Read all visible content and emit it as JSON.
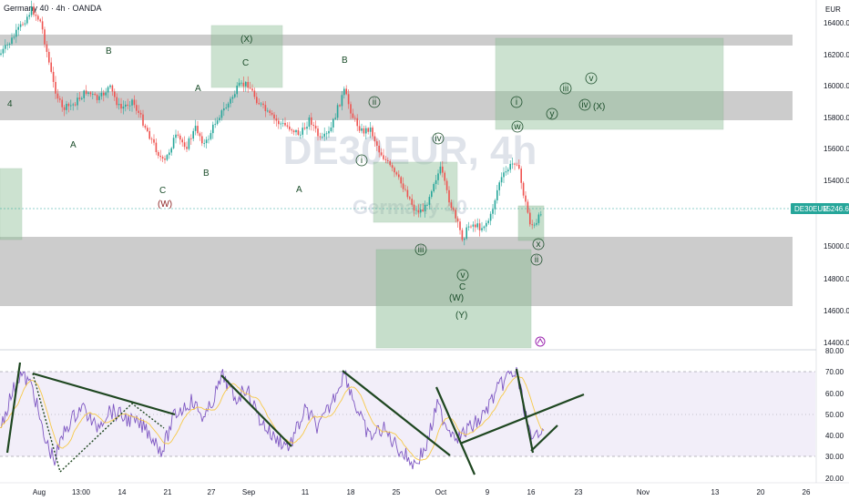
{
  "header": {
    "symbol": "Germany 40",
    "interval": "4h",
    "broker": "OANDA",
    "currency": "EUR"
  },
  "watermark": {
    "ticker": "DE30EUR, 4h",
    "name": "Germany 40"
  },
  "price_tag": {
    "symbol": "DE30EUR",
    "value": "15246.6"
  },
  "price_axis": [
    "16400.0",
    "16200.0",
    "16000.0",
    "15800.0",
    "15600.0",
    "15400.0",
    "15200.0",
    "15000.0",
    "14800.0",
    "14600.0",
    "14400.0"
  ],
  "rsi_axis": [
    "80.00",
    "70.00",
    "60.00",
    "50.00",
    "40.00",
    "30.00",
    "20.00"
  ],
  "time_axis": [
    "Aug",
    "13:00",
    "14",
    "21",
    "27",
    "Sep",
    "11",
    "18",
    "25",
    "Oct",
    "9",
    "16",
    "23",
    "Nov",
    "13",
    "20",
    "26"
  ],
  "wave_labels": {
    "l4": "4",
    "lA1": "A",
    "lB1": "B",
    "lC1": "C",
    "lW": "(W)",
    "lB2": "B",
    "lA2": "A",
    "lC2": "C",
    "lX": "(X)",
    "lB3": "B",
    "lA3": "A",
    "li_small": "i",
    "lii_small": "ii",
    "liii_small": "iii",
    "liv_small": "iv",
    "lv_small": "v",
    "lC3": "C",
    "lW2": "(W)",
    "lY": "(Y)",
    "lI": "i",
    "lw": "w",
    "lx": "x",
    "lii2": "ii",
    "liii2": "iii",
    "liv2": "iv",
    "lv2": "v",
    "ly": "y",
    "lX2": "(X)"
  }
}
